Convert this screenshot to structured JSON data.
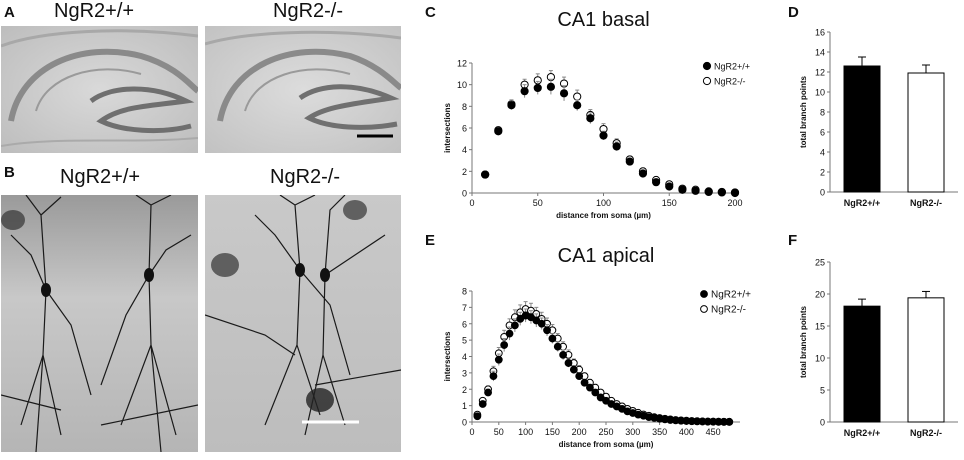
{
  "panels": {
    "A": {
      "letter": "A",
      "left_title": "NgR2+/+",
      "right_title": "NgR2-/-"
    },
    "B": {
      "letter": "B",
      "left_title": "NgR2+/+",
      "right_title": "NgR2-/-"
    },
    "C": {
      "letter": "C"
    },
    "D": {
      "letter": "D"
    },
    "E": {
      "letter": "E"
    },
    "F": {
      "letter": "F"
    }
  },
  "chart_data": [
    {
      "id": "C",
      "type": "scatter",
      "title": "CA1 basal",
      "xlabel": "distance from soma (µm)",
      "ylabel": "intersections",
      "xlim": [
        0,
        200
      ],
      "ylim": [
        0,
        12
      ],
      "xticks": [
        0,
        50,
        100,
        150,
        200
      ],
      "yticks": [
        0,
        2,
        4,
        6,
        8,
        10,
        12
      ],
      "legend_position": "top-right",
      "error_bars": true,
      "series": [
        {
          "name": "NgR2+/+",
          "marker": "filled",
          "color": "#000000",
          "x": [
            10,
            20,
            30,
            40,
            50,
            60,
            70,
            80,
            90,
            100,
            110,
            120,
            130,
            140,
            150,
            160,
            170,
            180,
            190,
            200
          ],
          "y": [
            1.7,
            5.7,
            8.1,
            9.4,
            9.7,
            9.8,
            9.2,
            8.1,
            6.9,
            5.3,
            4.3,
            2.9,
            1.8,
            1.0,
            0.6,
            0.3,
            0.2,
            0.1,
            0.05,
            0.0
          ],
          "err": [
            0.1,
            0.3,
            0.4,
            0.6,
            0.6,
            0.7,
            0.7,
            0.5,
            0.5,
            0.4,
            0.4,
            0.3,
            0.2,
            0.2,
            0.1,
            0.1,
            0.05,
            0.05,
            0.05,
            0.0
          ]
        },
        {
          "name": "NgR2-/-",
          "marker": "open",
          "color": "#000000",
          "x": [
            10,
            20,
            30,
            40,
            50,
            60,
            70,
            80,
            90,
            100,
            110,
            120,
            130,
            140,
            150,
            160,
            170,
            180,
            190,
            200
          ],
          "y": [
            1.7,
            5.8,
            8.2,
            10.0,
            10.4,
            10.7,
            10.1,
            8.9,
            7.2,
            5.9,
            4.6,
            3.1,
            2.0,
            1.2,
            0.8,
            0.4,
            0.3,
            0.15,
            0.1,
            0.05
          ],
          "err": [
            0.1,
            0.3,
            0.4,
            0.5,
            0.6,
            0.6,
            0.6,
            0.6,
            0.5,
            0.5,
            0.4,
            0.3,
            0.3,
            0.2,
            0.15,
            0.1,
            0.05,
            0.05,
            0.05,
            0.0
          ]
        }
      ]
    },
    {
      "id": "D",
      "type": "bar",
      "title": "",
      "xlabel": "",
      "ylabel": "total branch points",
      "categories": [
        "NgR2+/+",
        "NgR2-/-"
      ],
      "values": [
        12.6,
        11.9
      ],
      "err": [
        0.9,
        0.8
      ],
      "fills": [
        "#000000",
        "#ffffff"
      ],
      "ylim": [
        0,
        16
      ],
      "yticks": [
        0,
        2,
        4,
        6,
        8,
        10,
        12,
        14,
        16
      ]
    },
    {
      "id": "E",
      "type": "scatter",
      "title": "CA1 apical",
      "xlabel": "distance from soma (µm)",
      "ylabel": "intersections",
      "xlim": [
        0,
        500
      ],
      "ylim": [
        0,
        8
      ],
      "xticks": [
        0,
        50,
        100,
        150,
        200,
        250,
        300,
        350,
        400,
        450
      ],
      "yticks": [
        0,
        1,
        2,
        3,
        4,
        5,
        6,
        7,
        8
      ],
      "legend_position": "top-right",
      "error_bars": true,
      "series": [
        {
          "name": "NgR2+/+",
          "marker": "filled",
          "color": "#000000",
          "x": [
            10,
            20,
            30,
            40,
            50,
            60,
            70,
            80,
            90,
            100,
            110,
            120,
            130,
            140,
            150,
            160,
            170,
            180,
            190,
            200,
            210,
            220,
            230,
            240,
            250,
            260,
            270,
            280,
            290,
            300,
            310,
            320,
            330,
            340,
            350,
            360,
            370,
            380,
            390,
            400,
            410,
            420,
            430,
            440,
            450,
            460,
            470,
            480
          ],
          "y": [
            0.35,
            1.1,
            1.8,
            2.8,
            3.8,
            4.7,
            5.4,
            5.9,
            6.3,
            6.5,
            6.4,
            6.2,
            6.0,
            5.6,
            5.1,
            4.6,
            4.1,
            3.6,
            3.2,
            2.8,
            2.4,
            2.1,
            1.8,
            1.5,
            1.3,
            1.1,
            0.95,
            0.8,
            0.65,
            0.55,
            0.45,
            0.38,
            0.3,
            0.25,
            0.2,
            0.16,
            0.12,
            0.1,
            0.08,
            0.06,
            0.05,
            0.04,
            0.03,
            0.02,
            0.02,
            0.01,
            0.01,
            0.01
          ],
          "err": [
            0.1,
            0.15,
            0.2,
            0.3,
            0.35,
            0.4,
            0.4,
            0.4,
            0.4,
            0.4,
            0.4,
            0.4,
            0.35,
            0.35,
            0.3,
            0.3,
            0.3,
            0.25,
            0.25,
            0.2,
            0.2,
            0.2,
            0.15,
            0.15,
            0.15,
            0.1,
            0.1,
            0.1,
            0.1,
            0.1,
            0.05,
            0.05,
            0.05,
            0.05,
            0.05,
            0.05,
            0.05,
            0.03,
            0.03,
            0.03,
            0.02,
            0.02,
            0.02,
            0.01,
            0.01,
            0.01,
            0.01,
            0.01
          ]
        },
        {
          "name": "NgR2-/-",
          "marker": "open",
          "color": "#000000",
          "x": [
            10,
            20,
            30,
            40,
            50,
            60,
            70,
            80,
            90,
            100,
            110,
            120,
            130,
            140,
            150,
            160,
            170,
            180,
            190,
            200,
            210,
            220,
            230,
            240,
            250,
            260,
            270,
            280,
            290,
            300,
            310,
            320,
            330,
            340,
            350,
            360,
            370,
            380,
            390,
            400,
            410,
            420,
            430,
            440,
            450,
            460,
            470,
            480
          ],
          "y": [
            0.45,
            1.3,
            2.0,
            3.1,
            4.2,
            5.2,
            5.9,
            6.4,
            6.7,
            6.9,
            6.8,
            6.6,
            6.3,
            6.0,
            5.6,
            5.1,
            4.6,
            4.1,
            3.6,
            3.2,
            2.8,
            2.4,
            2.1,
            1.8,
            1.55,
            1.3,
            1.1,
            0.95,
            0.8,
            0.68,
            0.56,
            0.46,
            0.38,
            0.3,
            0.24,
            0.2,
            0.16,
            0.12,
            0.1,
            0.08,
            0.06,
            0.05,
            0.04,
            0.03,
            0.02,
            0.02,
            0.01,
            0.01
          ],
          "err": [
            0.1,
            0.15,
            0.2,
            0.3,
            0.35,
            0.4,
            0.4,
            0.45,
            0.45,
            0.45,
            0.45,
            0.4,
            0.4,
            0.35,
            0.35,
            0.3,
            0.3,
            0.3,
            0.25,
            0.25,
            0.2,
            0.2,
            0.2,
            0.15,
            0.15,
            0.1,
            0.1,
            0.1,
            0.1,
            0.1,
            0.05,
            0.05,
            0.05,
            0.05,
            0.05,
            0.05,
            0.05,
            0.03,
            0.03,
            0.03,
            0.02,
            0.02,
            0.02,
            0.01,
            0.01,
            0.01,
            0.01,
            0.01
          ]
        }
      ]
    },
    {
      "id": "F",
      "type": "bar",
      "title": "",
      "xlabel": "",
      "ylabel": "total branch points",
      "categories": [
        "NgR2+/+",
        "NgR2-/-"
      ],
      "values": [
        18.1,
        19.4
      ],
      "err": [
        1.1,
        1.0
      ],
      "fills": [
        "#000000",
        "#ffffff"
      ],
      "ylim": [
        0,
        25
      ],
      "yticks": [
        0,
        5,
        10,
        15,
        20,
        25
      ]
    }
  ]
}
